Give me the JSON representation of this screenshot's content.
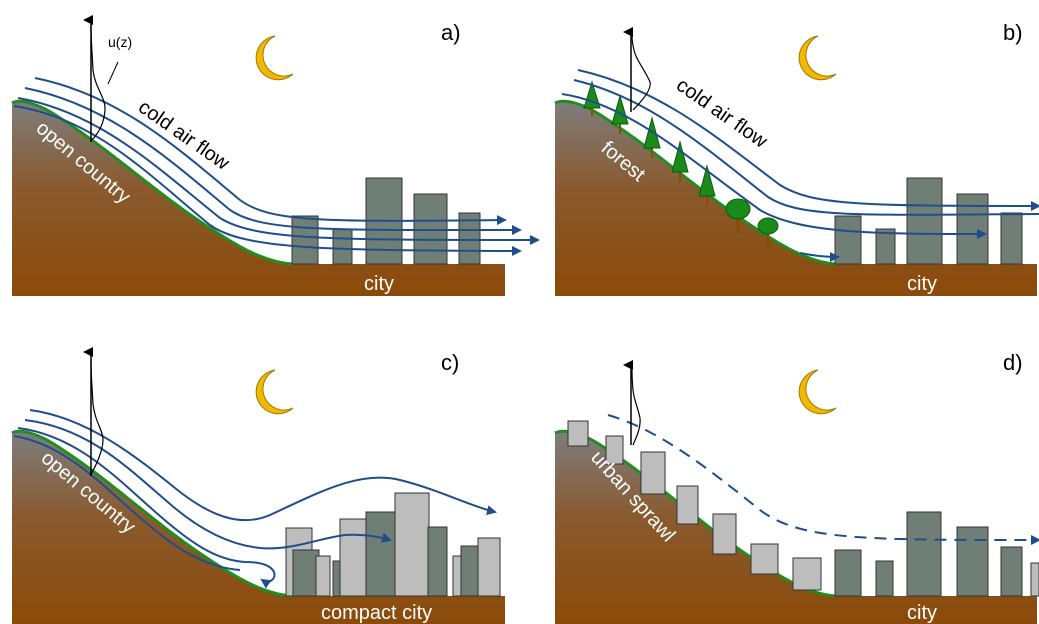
{
  "panels": {
    "a": {
      "letter": "a)",
      "terrain_label": "open country",
      "flow_label": "cold air flow",
      "city_label": "city",
      "profile_label": "u(z)"
    },
    "b": {
      "letter": "b)",
      "terrain_label": "forest",
      "flow_label": "cold air flow",
      "city_label": "city"
    },
    "c": {
      "letter": "c)",
      "terrain_label": "open country",
      "city_label": "compact city"
    },
    "d": {
      "letter": "d)",
      "terrain_label": "urban sprawl",
      "city_label": "city"
    }
  },
  "colors": {
    "ground_top": "#7a7a7a",
    "ground_bottom": "#8b4a08",
    "ground_edge": "#1f8f1f",
    "flow": "#1f4e8c",
    "building_dark": "#6f7f76",
    "building_light": "#bdbdbd",
    "tree": "#1a8a1a",
    "moon": "#f2b800"
  }
}
